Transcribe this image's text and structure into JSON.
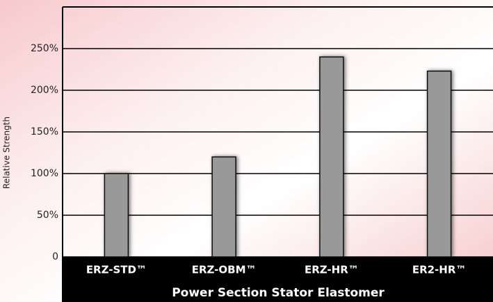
{
  "chart_data": {
    "type": "bar",
    "y_label": "Relative Strength",
    "x_label": "Power Section Stator Elastomer",
    "categories": [
      "ERZ-STD™",
      "ERZ-OBM™",
      "ERZ-HR™",
      "ER2-HR™"
    ],
    "values": [
      100,
      120,
      240,
      223
    ],
    "color": "#999999",
    "ylim": [
      0,
      300
    ],
    "yticks": [
      0,
      {
        "value": 50,
        "label": "50%"
      },
      {
        "value": 100,
        "label": "100%"
      },
      {
        "value": 150,
        "label": "150%"
      },
      {
        "value": 200,
        "label": "200%"
      },
      {
        "value": 250,
        "label": "250%"
      }
    ],
    "grid": true
  }
}
